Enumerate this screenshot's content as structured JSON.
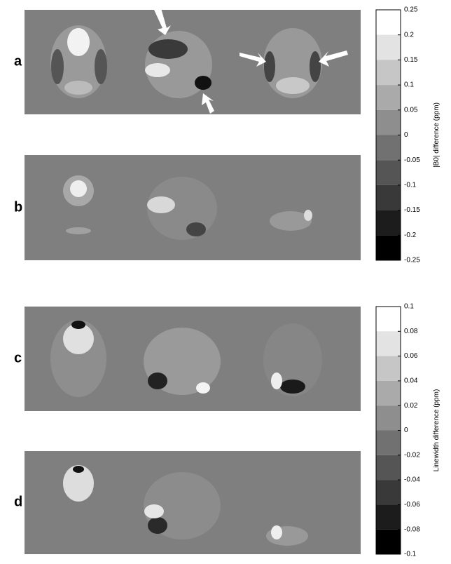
{
  "panels": [
    {
      "label": "a"
    },
    {
      "label": "b"
    },
    {
      "label": "c"
    },
    {
      "label": "d"
    }
  ],
  "colorbars": [
    {
      "label": "|B0| difference (ppm)",
      "ticks": [
        0.25,
        0.2,
        0.15,
        0.1,
        0.05,
        0,
        -0.05,
        -0.1,
        -0.15,
        -0.2,
        -0.25
      ]
    },
    {
      "label": "Linewidth difference (ppm)",
      "ticks": [
        0.1,
        0.08,
        0.06,
        0.04,
        0.02,
        0,
        -0.02,
        -0.04,
        -0.06,
        -0.08,
        -0.1
      ]
    }
  ]
}
